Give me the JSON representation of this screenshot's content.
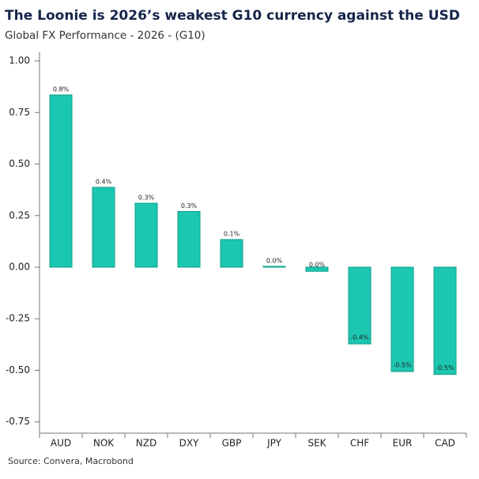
{
  "chart_data": {
    "type": "bar",
    "title": "The Loonie is 2026’s weakest G10 currency against the USD",
    "subtitle": "Global FX Performance - 2026 - (G10)",
    "source": "Source: Convera, Macrobond",
    "categories": [
      "AUD",
      "NOK",
      "NZD",
      "DXY",
      "GBP",
      "JPY",
      "SEK",
      "CHF",
      "EUR",
      "CAD"
    ],
    "values": [
      0.835,
      0.387,
      0.31,
      0.27,
      0.134,
      0.004,
      -0.02,
      -0.372,
      -0.506,
      -0.52
    ],
    "value_labels": [
      "0.8%",
      "0.4%",
      "0.3%",
      "0.3%",
      "0.1%",
      "0.0%",
      "0.0%",
      "-0.4%",
      "-0.5%",
      "-0.5%"
    ],
    "color": "#1cc7b1",
    "ylim": [
      -0.82,
      1.04
    ],
    "yticks": [
      {
        "value": 1,
        "label": "1.00"
      },
      {
        "value": 0.75,
        "label": "0.75"
      },
      {
        "value": 0.5,
        "label": "0.50"
      },
      {
        "value": 0.25,
        "label": "0.25"
      },
      {
        "value": 0,
        "label": "0.00"
      },
      {
        "value": -0.25,
        "label": "-0.25"
      },
      {
        "value": -0.5,
        "label": "-0.50"
      },
      {
        "value": -0.75,
        "label": "-0.75"
      }
    ],
    "grid": false
  }
}
